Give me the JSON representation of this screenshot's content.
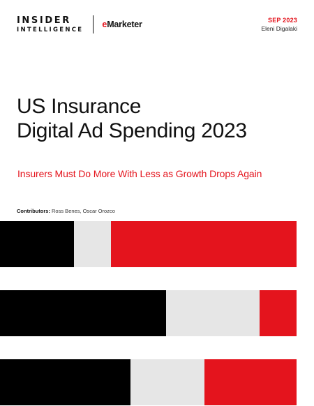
{
  "brand": {
    "logo_line1": "INSIDER",
    "logo_line2": "INTELLIGENCE",
    "partner_prefix": "e",
    "partner_name": "Marketer",
    "accent_color": "#e4141d"
  },
  "meta": {
    "date": "SEP 2023",
    "author": "Eleni Digalaki"
  },
  "report": {
    "title_line1": "US Insurance",
    "title_line2": "Digital Ad Spending 2023",
    "subtitle": "Insurers Must Do More With Less as Growth Drops Again"
  },
  "contributors": {
    "label": "Contributors:",
    "names": "Ross Benes, Oscar Orozco"
  },
  "decorative_bars": [
    {
      "segments": [
        {
          "color": "black",
          "share": 0.25
        },
        {
          "color": "gray",
          "share": 0.125
        },
        {
          "color": "red",
          "share": 0.625
        }
      ]
    },
    {
      "segments": [
        {
          "color": "black",
          "share": 0.56
        },
        {
          "color": "gray",
          "share": 0.315
        },
        {
          "color": "red",
          "share": 0.125
        }
      ]
    },
    {
      "segments": [
        {
          "color": "black",
          "share": 0.44
        },
        {
          "color": "gray",
          "share": 0.25
        },
        {
          "color": "red",
          "share": 0.31
        }
      ]
    }
  ]
}
